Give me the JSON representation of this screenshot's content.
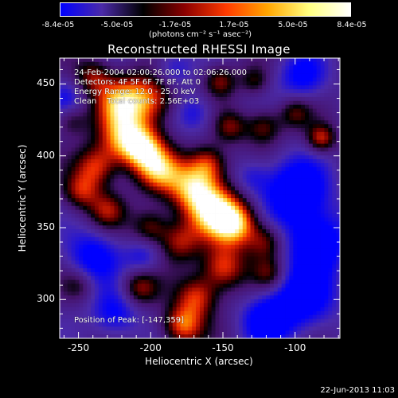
{
  "colorbar": {
    "colors": [
      "#0000ff",
      "#4b2aa8",
      "#000000",
      "#8b0000",
      "#ff3a00",
      "#ffa500",
      "#ffff80",
      "#ffffff"
    ],
    "tick_labels": [
      "-8.4e-05",
      "-5.0e-05",
      "-1.7e-05",
      "1.7e-05",
      "5.0e-05",
      "8.4e-05"
    ],
    "units": "(photons cm⁻² s⁻¹ asec⁻²)",
    "range": [
      -8.4e-05,
      8.4e-05
    ]
  },
  "chart_data": {
    "type": "heatmap",
    "title": "Reconstructed RHESSI Image",
    "xlabel": "Heliocentric X (arcsec)",
    "ylabel": "Heliocentric Y (arcsec)",
    "xlim": [
      -263,
      -69
    ],
    "ylim": [
      273,
      468
    ],
    "x_ticks": [
      -250,
      -200,
      -150,
      -100
    ],
    "y_ticks": [
      300,
      350,
      400,
      450
    ],
    "annotations": [
      "24-Feb-2004 02:00:26.000 to 02:06:26.000",
      "Detectors: 4F 5F 6F 7F 8F, Att 0",
      "Energy Range: 12.0 - 25.0 keV",
      "Clean    Total counts: 2.56E+03"
    ],
    "peak_label": "Position of Peak: [-147,359]",
    "blobs": [
      {
        "x": -240,
        "y": 455,
        "amp": 0.55,
        "s": 9
      },
      {
        "x": -222,
        "y": 438,
        "amp": 0.75,
        "s": 12
      },
      {
        "x": -200,
        "y": 440,
        "amp": 0.8,
        "s": 13
      },
      {
        "x": -218,
        "y": 412,
        "amp": 0.95,
        "s": 13
      },
      {
        "x": -205,
        "y": 405,
        "amp": 0.7,
        "s": 10
      },
      {
        "x": -195,
        "y": 390,
        "amp": 0.8,
        "s": 11
      },
      {
        "x": -238,
        "y": 392,
        "amp": 0.7,
        "s": 10
      },
      {
        "x": -248,
        "y": 375,
        "amp": 0.6,
        "s": 9
      },
      {
        "x": -230,
        "y": 362,
        "amp": 0.55,
        "s": 9
      },
      {
        "x": -170,
        "y": 378,
        "amp": 1.0,
        "s": 13
      },
      {
        "x": -155,
        "y": 360,
        "amp": 0.95,
        "s": 13
      },
      {
        "x": -140,
        "y": 352,
        "amp": 0.85,
        "s": 11
      },
      {
        "x": -160,
        "y": 395,
        "amp": 0.6,
        "s": 9
      },
      {
        "x": -120,
        "y": 340,
        "amp": 0.55,
        "s": 9
      },
      {
        "x": -180,
        "y": 340,
        "amp": 0.6,
        "s": 10
      },
      {
        "x": -200,
        "y": 350,
        "amp": 0.55,
        "s": 9
      },
      {
        "x": -150,
        "y": 322,
        "amp": 0.8,
        "s": 11
      },
      {
        "x": -168,
        "y": 302,
        "amp": 0.7,
        "s": 10
      },
      {
        "x": -178,
        "y": 282,
        "amp": 0.85,
        "s": 10
      },
      {
        "x": -208,
        "y": 308,
        "amp": 0.6,
        "s": 9
      },
      {
        "x": -122,
        "y": 420,
        "amp": 0.55,
        "s": 9
      },
      {
        "x": -145,
        "y": 420,
        "amp": 0.5,
        "s": 8
      },
      {
        "x": -152,
        "y": 452,
        "amp": 0.55,
        "s": 8
      },
      {
        "x": -128,
        "y": 452,
        "amp": 0.4,
        "s": 7
      },
      {
        "x": -82,
        "y": 412,
        "amp": 0.7,
        "s": 7
      },
      {
        "x": -100,
        "y": 430,
        "amp": 0.45,
        "s": 8
      },
      {
        "x": -118,
        "y": 318,
        "amp": 0.45,
        "s": 8
      },
      {
        "x": -255,
        "y": 425,
        "amp": 0.4,
        "s": 8
      },
      {
        "x": -250,
        "y": 310,
        "amp": 0.35,
        "s": 8
      },
      {
        "x": -100,
        "y": 375,
        "amp": -0.8,
        "s": 16
      },
      {
        "x": -85,
        "y": 340,
        "amp": -0.75,
        "s": 15
      },
      {
        "x": -95,
        "y": 300,
        "amp": -0.7,
        "s": 16
      },
      {
        "x": -120,
        "y": 285,
        "amp": -0.6,
        "s": 12
      },
      {
        "x": -240,
        "y": 330,
        "amp": -0.6,
        "s": 13
      },
      {
        "x": -225,
        "y": 290,
        "amp": -0.55,
        "s": 12
      },
      {
        "x": -185,
        "y": 460,
        "amp": -0.45,
        "s": 10
      },
      {
        "x": -95,
        "y": 455,
        "amp": -0.55,
        "s": 12
      },
      {
        "x": -170,
        "y": 430,
        "amp": -0.45,
        "s": 10
      },
      {
        "x": -258,
        "y": 440,
        "amp": -0.35,
        "s": 9
      },
      {
        "x": -130,
        "y": 385,
        "amp": -0.35,
        "s": 9
      },
      {
        "x": -205,
        "y": 330,
        "amp": -0.4,
        "s": 9
      }
    ]
  },
  "footer": {
    "date": "22-Jun-2013 11:03"
  }
}
